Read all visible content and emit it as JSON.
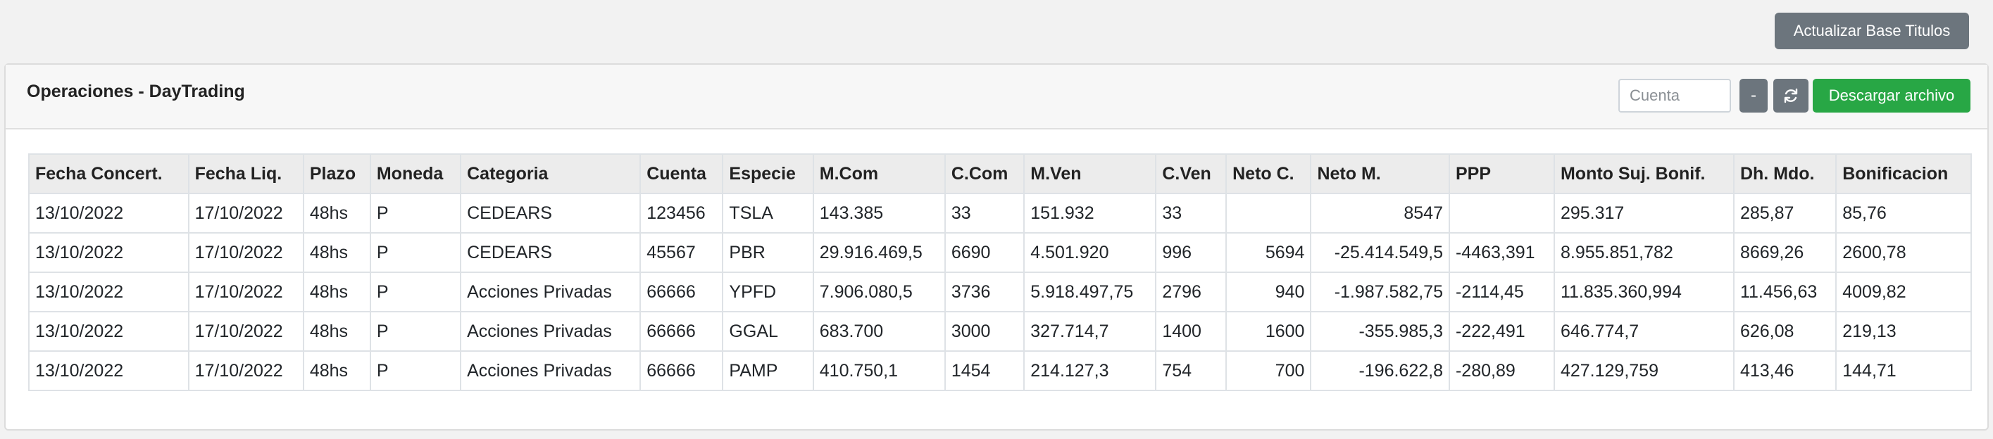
{
  "top_button": "Actualizar Base Titulos",
  "card": {
    "title": "Operaciones - DayTrading",
    "cuenta_placeholder": "Cuenta",
    "dash_label": "-",
    "download_label": "Descargar archivo"
  },
  "table": {
    "headers": [
      "Fecha Concert.",
      "Fecha Liq.",
      "Plazo",
      "Moneda",
      "Categoria",
      "Cuenta",
      "Especie",
      "M.Com",
      "C.Com",
      "M.Ven",
      "C.Ven",
      "Neto C.",
      "Neto M.",
      "PPP",
      "Monto Suj. Bonif.",
      "Dh. Mdo.",
      "Bonificacion"
    ],
    "rows": [
      [
        "13/10/2022",
        "17/10/2022",
        "48hs",
        "P",
        "CEDEARS",
        "123456",
        "TSLA",
        "143.385",
        "33",
        "151.932",
        "33",
        "",
        "8547",
        "",
        "295.317",
        "285,87",
        "85,76"
      ],
      [
        "13/10/2022",
        "17/10/2022",
        "48hs",
        "P",
        "CEDEARS",
        "45567",
        "PBR",
        "29.916.469,5",
        "6690",
        "4.501.920",
        "996",
        "5694",
        "-25.414.549,5",
        "-4463,391",
        "8.955.851,782",
        "8669,26",
        "2600,78"
      ],
      [
        "13/10/2022",
        "17/10/2022",
        "48hs",
        "P",
        "Acciones Privadas",
        "66666",
        "YPFD",
        "7.906.080,5",
        "3736",
        "5.918.497,75",
        "2796",
        "940",
        "-1.987.582,75",
        "-2114,45",
        "11.835.360,994",
        "11.456,63",
        "4009,82"
      ],
      [
        "13/10/2022",
        "17/10/2022",
        "48hs",
        "P",
        "Acciones Privadas",
        "66666",
        "GGAL",
        "683.700",
        "3000",
        "327.714,7",
        "1400",
        "1600",
        "-355.985,3",
        "-222,491",
        "646.774,7",
        "626,08",
        "219,13"
      ],
      [
        "13/10/2022",
        "17/10/2022",
        "48hs",
        "P",
        "Acciones Privadas",
        "66666",
        "PAMP",
        "410.750,1",
        "1454",
        "214.127,3",
        "754",
        "700",
        "-196.622,8",
        "-280,89",
        "427.129,759",
        "413,46",
        "144,71"
      ]
    ]
  }
}
